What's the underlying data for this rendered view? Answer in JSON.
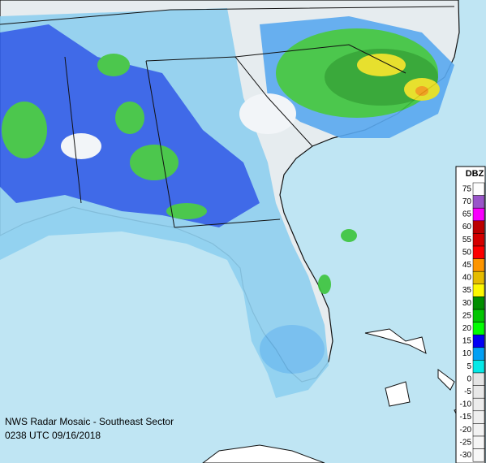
{
  "caption": {
    "line1": "NWS Radar Mosaic - Southeast Sector",
    "line2": "0238 UTC 09/16/2018"
  },
  "legend": {
    "title": "DBZ",
    "entries": [
      {
        "value": 75,
        "color": "#fdfdfd"
      },
      {
        "value": 70,
        "color": "#9955c9"
      },
      {
        "value": 65,
        "color": "#f800fd"
      },
      {
        "value": 60,
        "color": "#bc0000"
      },
      {
        "value": 55,
        "color": "#d40000"
      },
      {
        "value": 50,
        "color": "#fd0000"
      },
      {
        "value": 45,
        "color": "#fd9500"
      },
      {
        "value": 40,
        "color": "#e5bc00"
      },
      {
        "value": 35,
        "color": "#fdf802"
      },
      {
        "value": 30,
        "color": "#008e00"
      },
      {
        "value": 25,
        "color": "#01c501"
      },
      {
        "value": 20,
        "color": "#02fd02"
      },
      {
        "value": 15,
        "color": "#0300f4"
      },
      {
        "value": 10,
        "color": "#019ff4"
      },
      {
        "value": 5,
        "color": "#04e9e7"
      },
      {
        "value": 0,
        "color": "#e4e4e4"
      },
      {
        "value": -5,
        "color": "#e8e8e8"
      },
      {
        "value": -10,
        "color": "#ececec"
      },
      {
        "value": -15,
        "color": "#efefef"
      },
      {
        "value": -20,
        "color": "#f2f2f2"
      },
      {
        "value": -25,
        "color": "#f5f5f5"
      },
      {
        "value": -30,
        "color": "#f8f8f8"
      }
    ]
  }
}
